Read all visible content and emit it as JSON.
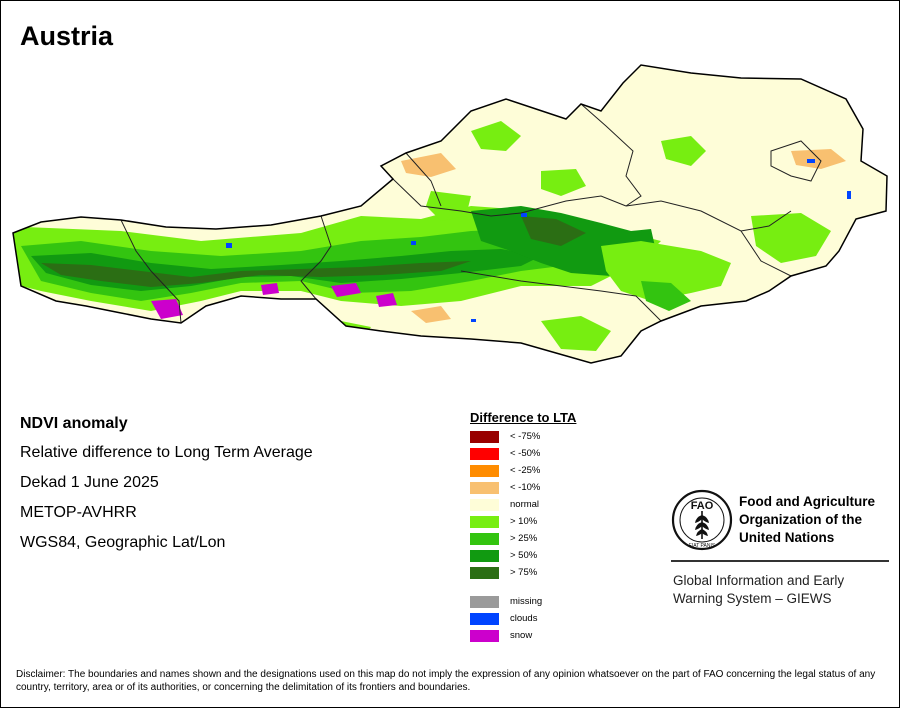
{
  "map": {
    "title": "Austria",
    "info": {
      "heading": "NDVI anomaly",
      "lines": [
        "Relative difference to Long Term Average",
        "Dekad 1 June 2025",
        "METOP-AVHRR",
        "WGS84, Geographic Lat/Lon"
      ]
    },
    "legend": {
      "title": "Difference to LTA",
      "items": [
        {
          "label": "< -75%",
          "color": "#990000"
        },
        {
          "label": "< -50%",
          "color": "#ff0000"
        },
        {
          "label": "< -25%",
          "color": "#ff8c00"
        },
        {
          "label": "< -10%",
          "color": "#f8c070"
        },
        {
          "label": "normal",
          "color": "#fefdd8"
        },
        {
          "label": "> 10%",
          "color": "#77ee11"
        },
        {
          "label": "> 25%",
          "color": "#33c410"
        },
        {
          "label": "> 50%",
          "color": "#119a11"
        },
        {
          "label": "> 75%",
          "color": "#2b6e14"
        }
      ],
      "extra_items": [
        {
          "label": "missing",
          "color": "#9a9a9a"
        },
        {
          "label": "clouds",
          "color": "#0044ff"
        },
        {
          "label": "snow",
          "color": "#cc00cc"
        }
      ]
    },
    "logo": {
      "org_lines": [
        "Food and Agriculture",
        "Organization of the",
        "United Nations"
      ],
      "emblem_text": "FAO",
      "motto": "FIAT PANIS",
      "program_lines": [
        "Global Information and Early",
        "Warning System – GIEWS"
      ]
    },
    "disclaimer": "Disclaimer: The boundaries and names shown and the designations used on this map do not imply the expression of any opinion whatsoever on the part of FAO concerning the legal status of any country, territory, area or of its authorities, or concerning the delimitation of its frontiers and boundaries."
  }
}
